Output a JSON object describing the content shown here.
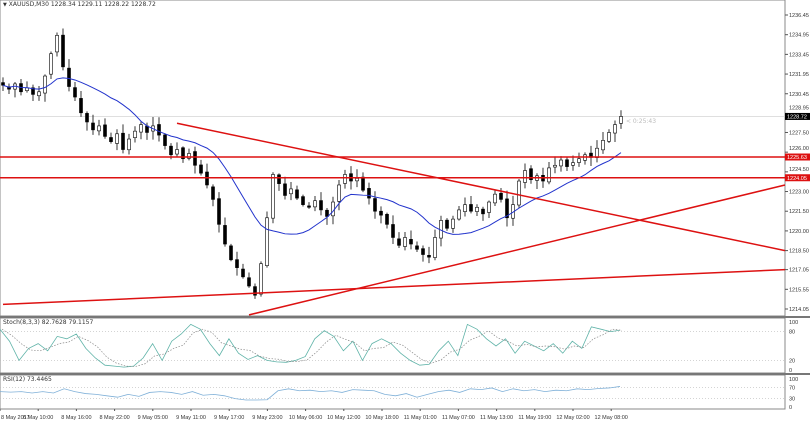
{
  "header": {
    "symbol_info": "XAUUSD,M30  1228.34 1229.11 1228.22 1228.72",
    "menu_icon": "triangle-down-icon"
  },
  "countdown": "< 0:25:43",
  "colors": {
    "bull": "#ffffff",
    "bear": "#000000",
    "ma": "#2233cc",
    "trendline": "#dd1111",
    "stoch_main": "#5fb3a8",
    "stoch_signal": "#888888",
    "rsi": "#7fb0d8",
    "price_tag": "#000000",
    "level_tag": "#dd1111"
  },
  "chart_data": [
    {
      "type": "candlestick",
      "title": "XAUUSD,M30",
      "ylim": [
        1213.6,
        1237.3
      ],
      "y_ticks": [
        "1236.45",
        "1234.95",
        "1233.45",
        "1231.95",
        "1230.45",
        "1228.95",
        "1227.50",
        "1226.00",
        "1224.50",
        "1223.00",
        "1221.50",
        "1220.00",
        "1218.50",
        "1217.05",
        "1215.55",
        "1214.05"
      ],
      "x_ticks": [
        "8 May 2017",
        "8 May 10:00",
        "8 May 16:00",
        "8 May 22:00",
        "9 May 05:00",
        "9 May 11:00",
        "9 May 17:00",
        "9 May 23:00",
        "10 May 06:00",
        "10 May 12:00",
        "10 May 18:00",
        "11 May 01:00",
        "11 May 07:00",
        "11 May 13:00",
        "11 May 19:00",
        "12 May 02:00",
        "12 May 08:00"
      ],
      "closes": [
        1231.1,
        1230.8,
        1231.2,
        1230.6,
        1230.9,
        1230.4,
        1230.6,
        1231.8,
        1233.5,
        1234.9,
        1232.5,
        1231.0,
        1230.2,
        1229.0,
        1228.3,
        1227.7,
        1228.0,
        1227.2,
        1226.8,
        1227.4,
        1226.2,
        1227.0,
        1227.6,
        1228.1,
        1227.5,
        1228.0,
        1227.3,
        1226.5,
        1225.8,
        1226.2,
        1225.5,
        1225.9,
        1225.0,
        1224.4,
        1223.5,
        1222.4,
        1220.5,
        1219.0,
        1217.8,
        1217.2,
        1216.5,
        1215.8,
        1215.1,
        1217.5,
        1221.0,
        1224.3,
        1223.6,
        1222.7,
        1223.2,
        1222.5,
        1222.0,
        1221.8,
        1222.3,
        1221.6,
        1221.1,
        1222.2,
        1223.5,
        1224.3,
        1223.8,
        1224.0,
        1223.1,
        1222.5,
        1221.5,
        1221.2,
        1220.5,
        1219.5,
        1218.9,
        1219.5,
        1219.0,
        1218.6,
        1218.2,
        1218.0,
        1219.5,
        1220.8,
        1220.2,
        1220.9,
        1221.6,
        1222.0,
        1221.5,
        1221.8,
        1221.3,
        1222.2,
        1222.8,
        1222.4,
        1221.0,
        1222.0,
        1223.8,
        1224.6,
        1223.9,
        1224.2,
        1223.8,
        1224.8,
        1225.0,
        1225.4,
        1224.9,
        1225.2,
        1225.5,
        1225.8,
        1225.6,
        1226.3,
        1226.9,
        1227.5,
        1228.1,
        1228.72
      ],
      "last_price": "1228.72",
      "horizontal_levels": [
        {
          "price": 1225.63,
          "label": "1225.63"
        },
        {
          "price": 1224.05,
          "label": "1224.05"
        }
      ],
      "trendlines": [
        {
          "from": [
            29,
            1228.2
          ],
          "to": [
            131,
            1218.5
          ]
        },
        {
          "from": [
            41,
            1213.6
          ],
          "to": [
            131,
            1223.5
          ]
        },
        {
          "from": [
            0,
            1214.4
          ],
          "to": [
            131,
            1217.05
          ]
        }
      ]
    },
    {
      "type": "line",
      "title": "Stoch(8,3,3) 82.7628 79.1157",
      "ylim": [
        0,
        100
      ],
      "levels": [
        "100",
        "80",
        "20",
        "0"
      ],
      "values": [
        85,
        60,
        20,
        45,
        55,
        40,
        70,
        65,
        75,
        45,
        25,
        10,
        8,
        6,
        8,
        25,
        55,
        20,
        60,
        75,
        95,
        85,
        55,
        30,
        65,
        35,
        22,
        30,
        20,
        17,
        16,
        20,
        28,
        65,
        82,
        70,
        40,
        60,
        20,
        55,
        65,
        55,
        35,
        20,
        10,
        12,
        40,
        60,
        30,
        95,
        85,
        65,
        50,
        65,
        35,
        60,
        50,
        40,
        55,
        35,
        60,
        45,
        90,
        85,
        80,
        82.8
      ]
    },
    {
      "type": "line",
      "title": "RSI(12) 73.4465",
      "ylim": [
        0,
        100
      ],
      "levels": [
        "100",
        "70",
        "30",
        "0"
      ],
      "values": [
        55,
        53,
        55,
        50,
        55,
        50,
        65,
        55,
        48,
        45,
        40,
        35,
        45,
        38,
        52,
        55,
        52,
        45,
        55,
        42,
        45,
        40,
        30,
        25,
        25,
        26,
        58,
        65,
        58,
        60,
        55,
        58,
        52,
        62,
        60,
        58,
        45,
        40,
        48,
        35,
        45,
        55,
        60,
        52,
        65,
        62,
        68,
        55,
        65,
        58,
        62,
        55,
        60,
        58,
        65,
        62,
        66,
        68,
        73.4
      ]
    }
  ]
}
